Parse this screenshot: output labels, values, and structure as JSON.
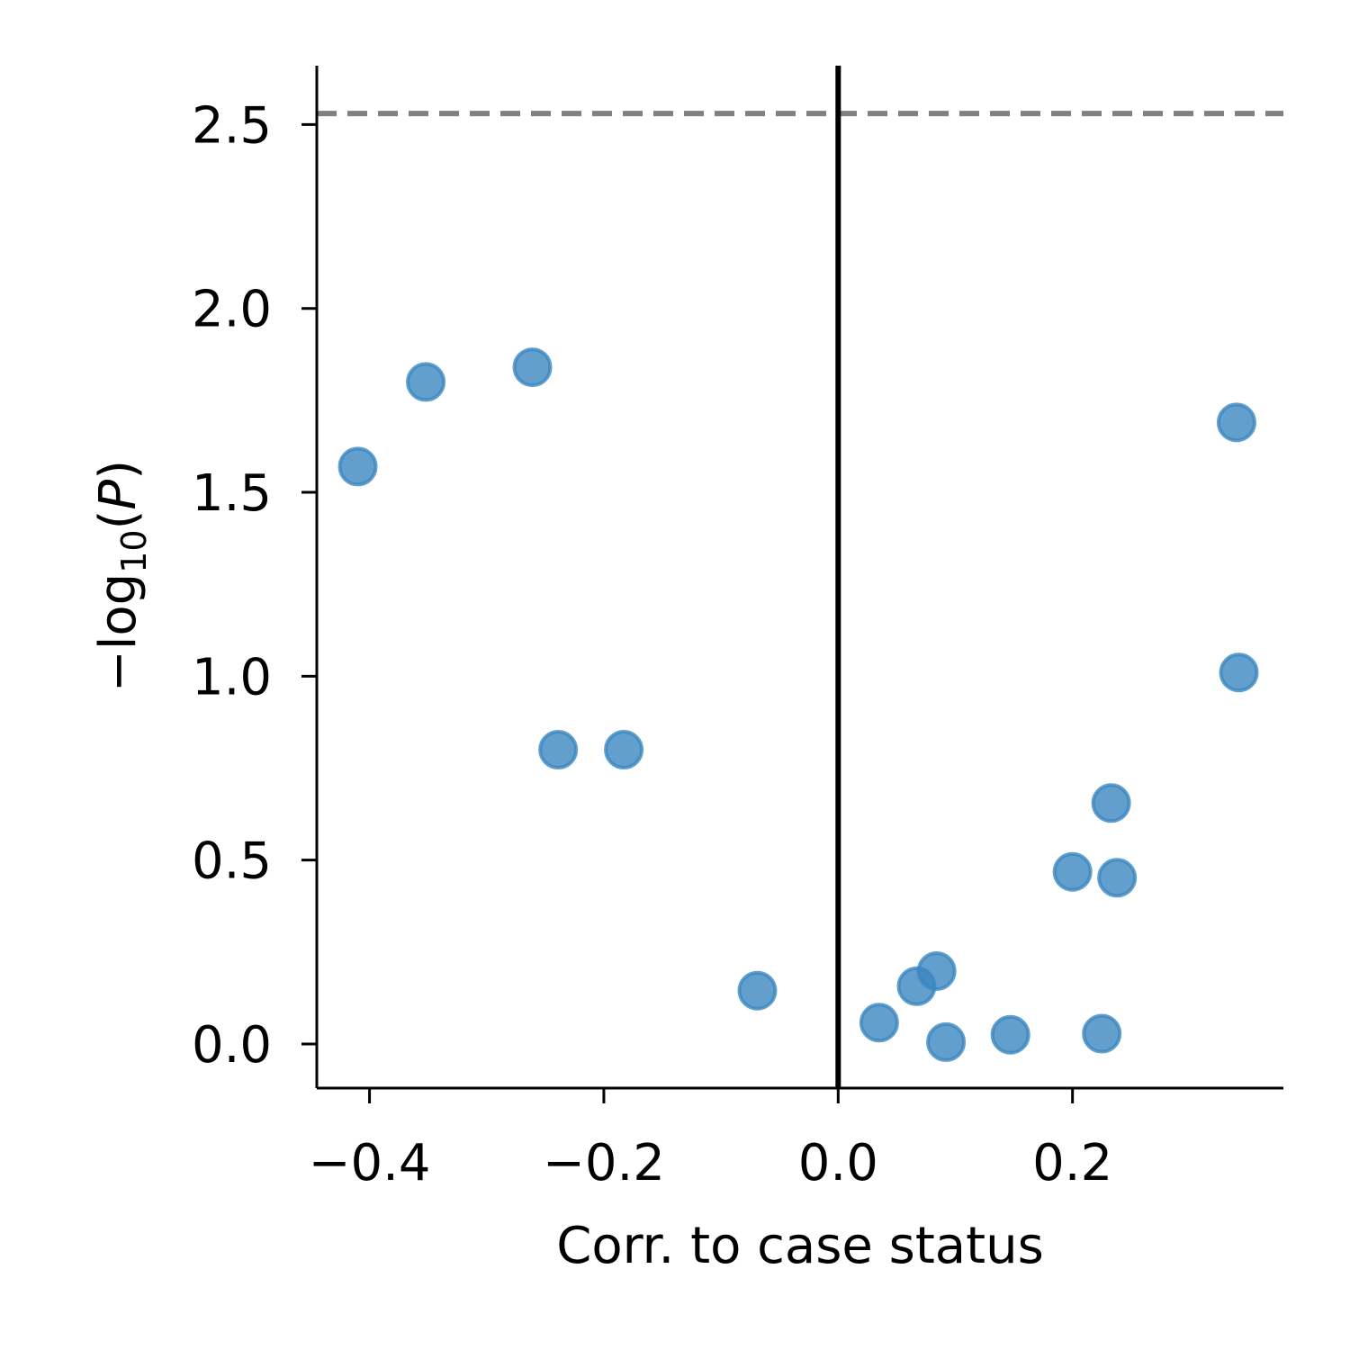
{
  "chart_data": {
    "type": "scatter",
    "xlabel": "Corr. to case status",
    "ylabel": "−log10(P)",
    "ylabel_parts": {
      "prefix": "−log",
      "subscript": "10",
      "open": "(",
      "italic": "P",
      "close": ")"
    },
    "xlim": [
      -0.445,
      0.38
    ],
    "ylim": [
      -0.12,
      2.66
    ],
    "xticks": [
      -0.4,
      -0.2,
      0.0,
      0.2
    ],
    "xtick_labels": [
      "−0.4",
      "−0.2",
      "0.0",
      "0.2"
    ],
    "yticks": [
      0.0,
      0.5,
      1.0,
      1.5,
      2.0,
      2.5
    ],
    "ytick_labels": [
      "0.0",
      "0.5",
      "1.0",
      "1.5",
      "2.0",
      "2.5"
    ],
    "threshold_y": 2.53,
    "vline_x": 0.0,
    "grid": false,
    "point_color": "#3b87c1",
    "points": [
      {
        "x": -0.41,
        "y": 1.57
      },
      {
        "x": -0.352,
        "y": 1.8
      },
      {
        "x": -0.261,
        "y": 1.84
      },
      {
        "x": -0.239,
        "y": 0.8
      },
      {
        "x": -0.183,
        "y": 0.8
      },
      {
        "x": -0.069,
        "y": 0.145
      },
      {
        "x": 0.035,
        "y": 0.058
      },
      {
        "x": 0.067,
        "y": 0.157
      },
      {
        "x": 0.084,
        "y": 0.198
      },
      {
        "x": 0.092,
        "y": 0.005
      },
      {
        "x": 0.147,
        "y": 0.025
      },
      {
        "x": 0.2,
        "y": 0.468
      },
      {
        "x": 0.225,
        "y": 0.028
      },
      {
        "x": 0.233,
        "y": 0.655
      },
      {
        "x": 0.238,
        "y": 0.452
      },
      {
        "x": 0.34,
        "y": 1.69
      },
      {
        "x": 0.342,
        "y": 1.01
      }
    ]
  }
}
